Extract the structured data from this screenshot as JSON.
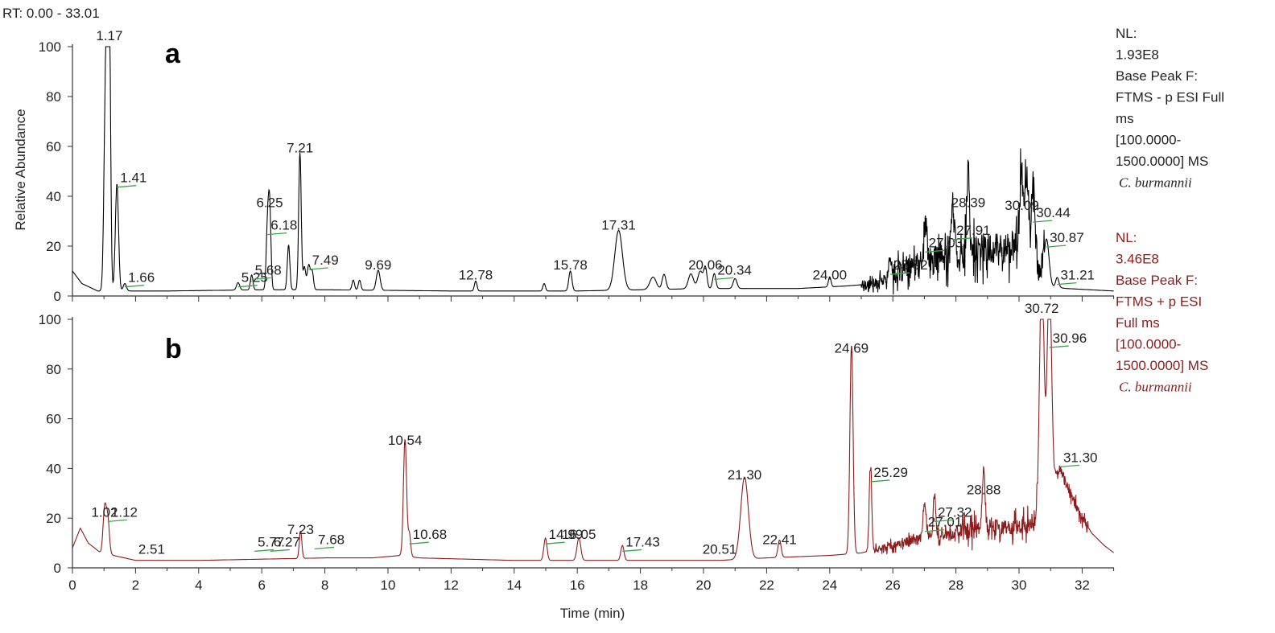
{
  "chart_data": {
    "type": "line",
    "range_label": "RT: 0.00 - 33.01",
    "xlabel": "Time (min)",
    "ylabel": "Relative Abundance",
    "xlim": [
      0,
      33.01
    ],
    "xticks": [
      0,
      2,
      4,
      6,
      8,
      10,
      12,
      14,
      16,
      18,
      20,
      22,
      24,
      26,
      28,
      30,
      32
    ],
    "panels": [
      {
        "id": "a",
        "letter": "a",
        "color": "#000000",
        "ylim": [
          0,
          100
        ],
        "yticks": [
          0,
          20,
          40,
          60,
          80,
          100
        ],
        "info": [
          "NL:",
          "1.93E8",
          "Base Peak F:",
          "FTMS - p ESI Full",
          "ms",
          "[100.0000-",
          "1500.0000]  MS"
        ],
        "species": "C. burmannii",
        "baseline": [
          [
            0,
            10
          ],
          [
            0.3,
            5
          ],
          [
            0.8,
            2
          ],
          [
            3,
            2
          ],
          [
            6,
            2.5
          ],
          [
            8,
            2.5
          ],
          [
            12,
            2
          ],
          [
            16,
            2
          ],
          [
            18,
            2.5
          ],
          [
            20,
            3
          ],
          [
            23,
            3
          ],
          [
            24.5,
            4
          ],
          [
            25.5,
            5
          ],
          [
            26,
            8
          ],
          [
            26.5,
            11
          ],
          [
            27,
            13
          ],
          [
            27.5,
            15
          ],
          [
            28,
            16
          ],
          [
            28.5,
            18
          ],
          [
            29,
            19
          ],
          [
            29.5,
            19
          ],
          [
            30,
            20
          ],
          [
            30.5,
            18
          ],
          [
            30.8,
            4
          ],
          [
            31.5,
            3
          ],
          [
            33,
            2
          ]
        ],
        "noise": [
          [
            25,
            26,
            3
          ],
          [
            26,
            26.8,
            6
          ],
          [
            26.8,
            28.2,
            8
          ],
          [
            28.2,
            30.8,
            9
          ]
        ],
        "peaks": [
          {
            "rt": 1.05,
            "h": 79,
            "w": 0.05
          },
          {
            "rt": 1.12,
            "h": 78,
            "w": 0.04
          },
          {
            "rt": 1.17,
            "h": 100,
            "w": 0.04
          },
          {
            "rt": 1.41,
            "h": 43,
            "w": 0.05
          },
          {
            "rt": 1.66,
            "h": 3,
            "w": 0.05
          },
          {
            "rt": 5.25,
            "h": 3,
            "w": 0.05
          },
          {
            "rt": 5.68,
            "h": 6,
            "w": 0.04
          },
          {
            "rt": 6.18,
            "h": 24,
            "w": 0.04
          },
          {
            "rt": 6.25,
            "h": 33,
            "w": 0.04
          },
          {
            "rt": 6.85,
            "h": 18,
            "w": 0.04
          },
          {
            "rt": 7.21,
            "h": 55,
            "w": 0.04
          },
          {
            "rt": 7.35,
            "h": 9,
            "w": 0.04
          },
          {
            "rt": 7.49,
            "h": 10,
            "w": 0.05
          },
          {
            "rt": 7.6,
            "h": 7,
            "w": 0.04
          },
          {
            "rt": 8.9,
            "h": 4,
            "w": 0.04
          },
          {
            "rt": 9.1,
            "h": 4,
            "w": 0.04
          },
          {
            "rt": 9.69,
            "h": 8,
            "w": 0.06
          },
          {
            "rt": 12.78,
            "h": 4,
            "w": 0.04
          },
          {
            "rt": 14.95,
            "h": 3,
            "w": 0.04
          },
          {
            "rt": 15.78,
            "h": 8,
            "w": 0.05
          },
          {
            "rt": 17.31,
            "h": 24,
            "w": 0.12
          },
          {
            "rt": 18.4,
            "h": 5,
            "w": 0.1
          },
          {
            "rt": 18.75,
            "h": 6,
            "w": 0.06
          },
          {
            "rt": 19.6,
            "h": 6,
            "w": 0.08
          },
          {
            "rt": 19.9,
            "h": 7,
            "w": 0.08
          },
          {
            "rt": 20.06,
            "h": 8,
            "w": 0.05
          },
          {
            "rt": 20.34,
            "h": 6,
            "w": 0.05
          },
          {
            "rt": 21.0,
            "h": 4,
            "w": 0.06
          },
          {
            "rt": 24.0,
            "h": 4,
            "w": 0.04
          },
          {
            "rt": 25.92,
            "h": 8,
            "w": 0.05
          },
          {
            "rt": 27.03,
            "h": 17,
            "w": 0.05
          },
          {
            "rt": 27.91,
            "h": 22,
            "w": 0.05
          },
          {
            "rt": 28.39,
            "h": 33,
            "w": 0.04
          },
          {
            "rt": 30.09,
            "h": 32,
            "w": 0.06
          },
          {
            "rt": 30.25,
            "h": 28,
            "w": 0.05
          },
          {
            "rt": 30.44,
            "h": 29,
            "w": 0.05
          },
          {
            "rt": 30.87,
            "h": 19,
            "w": 0.08
          },
          {
            "rt": 31.21,
            "h": 4,
            "w": 0.05
          }
        ],
        "labels": [
          {
            "rt": 1.17,
            "text": "1.17",
            "y": 100
          },
          {
            "rt": 1.41,
            "text": "1.41",
            "y": 43,
            "leader": true
          },
          {
            "rt": 1.66,
            "text": "1.66",
            "y": 3,
            "leader": true
          },
          {
            "rt": 5.25,
            "text": "5.25",
            "y": 3,
            "leader": true
          },
          {
            "rt": 5.68,
            "text": "5.68",
            "y": 6,
            "leader": true
          },
          {
            "rt": 6.18,
            "text": "6.18",
            "y": 24,
            "leader": true
          },
          {
            "rt": 6.25,
            "text": "6.25",
            "y": 33
          },
          {
            "rt": 7.21,
            "text": "7.21",
            "y": 55
          },
          {
            "rt": 7.49,
            "text": "7.49",
            "y": 10,
            "leader": true
          },
          {
            "rt": 9.69,
            "text": "9.69",
            "y": 8
          },
          {
            "rt": 12.78,
            "text": "12.78",
            "y": 4
          },
          {
            "rt": 15.78,
            "text": "15.78",
            "y": 8
          },
          {
            "rt": 17.31,
            "text": "17.31",
            "y": 24
          },
          {
            "rt": 20.06,
            "text": "20.06",
            "y": 8
          },
          {
            "rt": 20.34,
            "text": "20.34",
            "y": 6,
            "leader": true
          },
          {
            "rt": 24.0,
            "text": "24.00",
            "y": 4
          },
          {
            "rt": 25.92,
            "text": "25.92",
            "y": 8,
            "leader": true
          },
          {
            "rt": 27.03,
            "text": "27.03",
            "y": 17,
            "leader": true
          },
          {
            "rt": 27.91,
            "text": "27.91",
            "y": 22,
            "leader": true
          },
          {
            "rt": 28.39,
            "text": "28.39",
            "y": 33
          },
          {
            "rt": 30.09,
            "text": "30.09",
            "y": 32
          },
          {
            "rt": 30.44,
            "text": "30.44",
            "y": 29,
            "leader": true
          },
          {
            "rt": 30.87,
            "text": "30.87",
            "y": 19,
            "leader": true
          },
          {
            "rt": 31.21,
            "text": "31.21",
            "y": 4,
            "leader": true
          }
        ]
      },
      {
        "id": "b",
        "letter": "b",
        "color": "#8b1c1c",
        "ylim": [
          0,
          100
        ],
        "yticks": [
          0,
          20,
          40,
          60,
          80,
          100
        ],
        "info": [
          "NL:",
          "3.46E8",
          "Base Peak F:",
          "FTMS + p ESI",
          "Full ms",
          "[100.0000-",
          "1500.0000]  MS"
        ],
        "species": "C. burmannii",
        "baseline": [
          [
            0,
            8
          ],
          [
            0.25,
            16
          ],
          [
            0.5,
            10
          ],
          [
            0.9,
            6
          ],
          [
            1.3,
            5
          ],
          [
            2,
            3
          ],
          [
            4,
            3
          ],
          [
            6,
            3.5
          ],
          [
            8,
            4
          ],
          [
            9.5,
            4
          ],
          [
            10.4,
            5
          ],
          [
            11,
            4
          ],
          [
            14,
            3
          ],
          [
            18,
            3
          ],
          [
            20.5,
            3
          ],
          [
            22,
            4
          ],
          [
            24,
            5
          ],
          [
            25,
            6
          ],
          [
            26,
            9
          ],
          [
            27,
            12
          ],
          [
            28,
            14
          ],
          [
            29,
            16
          ],
          [
            30,
            17
          ],
          [
            30.6,
            18
          ],
          [
            31.3,
            40
          ],
          [
            31.8,
            25
          ],
          [
            32.3,
            14
          ],
          [
            32.7,
            9
          ],
          [
            33.01,
            6
          ]
        ],
        "noise": [
          [
            25.2,
            26.5,
            2
          ],
          [
            26.5,
            28,
            3
          ],
          [
            28,
            30.6,
            5
          ],
          [
            31.1,
            32.2,
            3
          ]
        ],
        "peaks": [
          {
            "rt": 1.02,
            "h": 18,
            "w": 0.05
          },
          {
            "rt": 1.12,
            "h": 14,
            "w": 0.05
          },
          {
            "rt": 7.23,
            "h": 11,
            "w": 0.04
          },
          {
            "rt": 10.54,
            "h": 47,
            "w": 0.05
          },
          {
            "rt": 10.68,
            "h": 9,
            "w": 0.04
          },
          {
            "rt": 14.99,
            "h": 9,
            "w": 0.05
          },
          {
            "rt": 16.05,
            "h": 9,
            "w": 0.06
          },
          {
            "rt": 17.43,
            "h": 6,
            "w": 0.05
          },
          {
            "rt": 21.3,
            "h": 33,
            "w": 0.12
          },
          {
            "rt": 22.41,
            "h": 7,
            "w": 0.05
          },
          {
            "rt": 24.69,
            "h": 84,
            "w": 0.05
          },
          {
            "rt": 25.29,
            "h": 34,
            "w": 0.04
          },
          {
            "rt": 27.01,
            "h": 14,
            "w": 0.05
          },
          {
            "rt": 27.32,
            "h": 18,
            "w": 0.04
          },
          {
            "rt": 28.88,
            "h": 27,
            "w": 0.04
          },
          {
            "rt": 30.72,
            "h": 100,
            "w": 0.07
          },
          {
            "rt": 30.96,
            "h": 88,
            "w": 0.07
          }
        ],
        "labels": [
          {
            "rt": 1.02,
            "text": "1.02",
            "y": 18
          },
          {
            "rt": 1.12,
            "text": "1.12",
            "y": 18,
            "leader": true
          },
          {
            "rt": 2.51,
            "text": "2.51",
            "y": 3
          },
          {
            "rt": 5.77,
            "text": "5.77",
            "y": 6,
            "leader": true
          },
          {
            "rt": 6.27,
            "text": "6.27",
            "y": 6,
            "leader": true
          },
          {
            "rt": 7.23,
            "text": "7.23",
            "y": 11
          },
          {
            "rt": 7.68,
            "text": "7.68",
            "y": 7,
            "leader": true
          },
          {
            "rt": 10.54,
            "text": "10.54",
            "y": 47
          },
          {
            "rt": 10.68,
            "text": "10.68",
            "y": 9,
            "leader": true
          },
          {
            "rt": 14.99,
            "text": "14.99",
            "y": 9,
            "leader": true
          },
          {
            "rt": 16.05,
            "text": "16.05",
            "y": 9
          },
          {
            "rt": 17.43,
            "text": "17.43",
            "y": 6,
            "leader": true
          },
          {
            "rt": 20.51,
            "text": "20.51",
            "y": 3
          },
          {
            "rt": 21.3,
            "text": "21.30",
            "y": 33
          },
          {
            "rt": 22.41,
            "text": "22.41",
            "y": 7
          },
          {
            "rt": 24.69,
            "text": "24.69",
            "y": 84
          },
          {
            "rt": 25.29,
            "text": "25.29",
            "y": 34,
            "leader": true
          },
          {
            "rt": 27.01,
            "text": "27.01",
            "y": 14,
            "leader": true
          },
          {
            "rt": 27.32,
            "text": "27.32",
            "y": 18,
            "leader": true
          },
          {
            "rt": 28.88,
            "text": "28.88",
            "y": 27
          },
          {
            "rt": 30.72,
            "text": "30.72",
            "y": 100
          },
          {
            "rt": 30.96,
            "text": "30.96",
            "y": 88,
            "leader": true
          },
          {
            "rt": 31.3,
            "text": "31.30",
            "y": 40,
            "leader": true
          }
        ]
      }
    ]
  }
}
